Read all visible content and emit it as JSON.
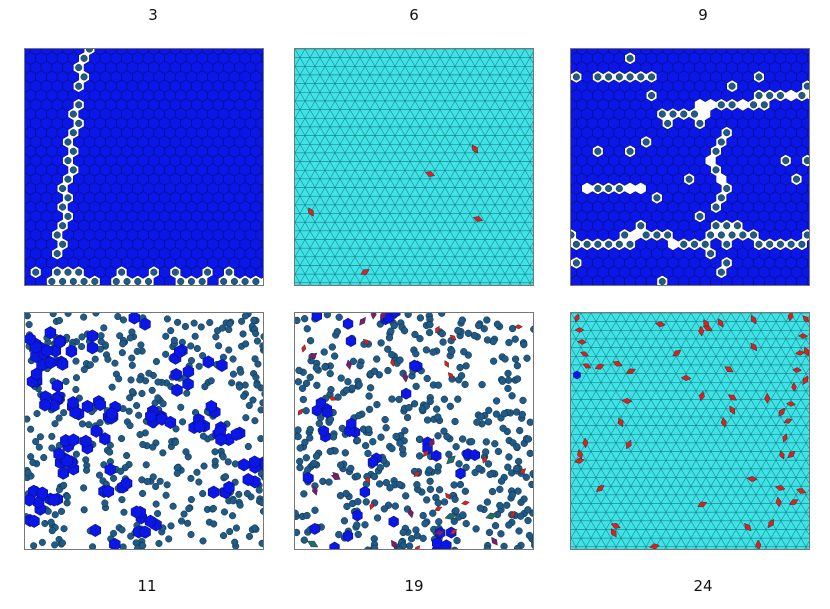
{
  "labels": [
    "3",
    "6",
    "9",
    "11",
    "19",
    "24"
  ],
  "colors": {
    "blue": "#0a17e8",
    "blue_edge": "#0a0f7a",
    "cyan": "#3fe3e6",
    "cyan_edge": "#137a83",
    "disk": "#1f5b86",
    "disk_edge": "#0e2c47",
    "red": "#e11d1d",
    "purple": "#7a1a70",
    "teal": "#1d6d6d"
  },
  "panels": [
    {
      "label": "3",
      "style": "blue-hex-with-diagonal-gap"
    },
    {
      "label": "6",
      "style": "cyan-triangular-lattice-few-red-defects"
    },
    {
      "label": "9",
      "style": "blue-domains-with-disk-boundaries"
    },
    {
      "label": "11",
      "style": "mixed-blue-clusters-and-disks"
    },
    {
      "label": "19",
      "style": "disks-with-sparse-blue-red-purple"
    },
    {
      "label": "24",
      "style": "cyan-lattice-many-red-defects"
    }
  ]
}
